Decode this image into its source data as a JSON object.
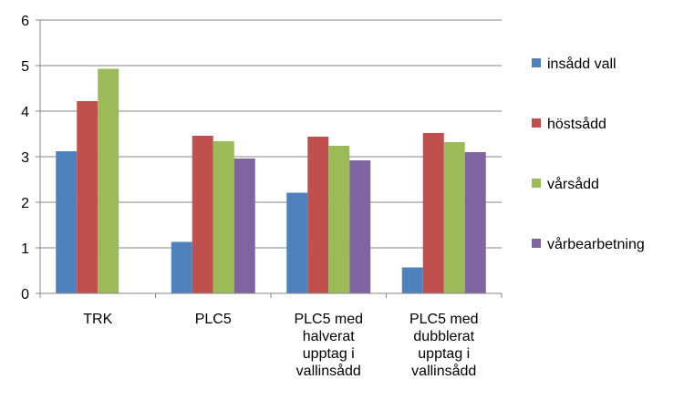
{
  "chart_data": {
    "type": "bar",
    "title": "",
    "xlabel": "",
    "ylabel": "",
    "ylim": [
      0,
      6
    ],
    "yticks": [
      0,
      1,
      2,
      3,
      4,
      5,
      6
    ],
    "grid": "horizontal",
    "legend_position": "right",
    "categories": [
      [
        "TRK"
      ],
      [
        "PLC5"
      ],
      [
        "PLC5 med",
        "halverat",
        "upptag i",
        "vallinsådd"
      ],
      [
        "PLC5 med",
        "dubblerat",
        "upptag i",
        "vallinsådd"
      ]
    ],
    "series": [
      {
        "name": "insådd vall",
        "color": "#4f81bd",
        "values": [
          3.12,
          1.13,
          2.21,
          0.57
        ]
      },
      {
        "name": "höstsådd",
        "color": "#c0504d",
        "values": [
          4.22,
          3.46,
          3.44,
          3.52
        ]
      },
      {
        "name": "vårsådd",
        "color": "#9bbb59",
        "values": [
          4.93,
          3.34,
          3.24,
          3.32
        ]
      },
      {
        "name": "vårbearbetning",
        "color": "#8064a2",
        "values": [
          null,
          2.96,
          2.92,
          3.1
        ]
      }
    ]
  }
}
